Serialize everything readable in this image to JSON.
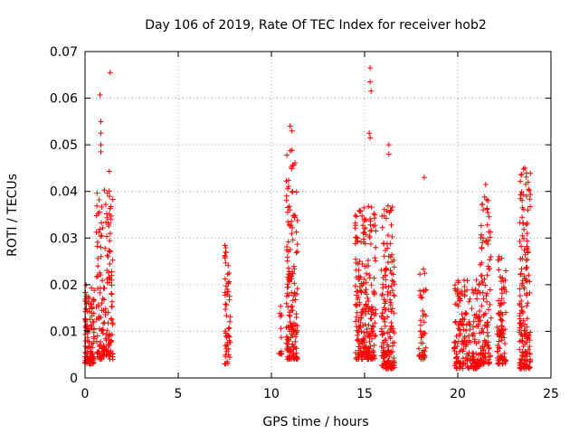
{
  "chart_data": {
    "type": "scatter",
    "title": "Day 106 of 2019, Rate Of TEC Index for receiver hob2",
    "xlabel": "GPS time / hours",
    "ylabel": "ROTI / TECUs",
    "xlim": [
      0,
      25
    ],
    "ylim": [
      0,
      0.07
    ],
    "xticks": [
      0,
      5,
      10,
      15,
      20,
      25
    ],
    "yticks": [
      0,
      0.01,
      0.02,
      0.03,
      0.04,
      0.05,
      0.06,
      0.07
    ],
    "xtick_labels": [
      "0",
      "5",
      "10",
      "15",
      "20",
      "25"
    ],
    "ytick_labels": [
      "0",
      "0.01",
      "0.02",
      "0.03",
      "0.04",
      "0.05",
      "0.06",
      "0.07"
    ],
    "grid": true,
    "marker": "+",
    "color": "#ff0000",
    "clusters": [
      {
        "x0": 0.0,
        "x1": 0.5,
        "ymin": 0.003,
        "ymax": 0.02,
        "n": 110
      },
      {
        "x0": 0.6,
        "x1": 1.5,
        "ymin": 0.004,
        "ymax": 0.041,
        "n": 170
      },
      {
        "x0": 7.5,
        "x1": 7.8,
        "ymin": 0.003,
        "ymax": 0.03,
        "n": 55
      },
      {
        "x0": 10.4,
        "x1": 10.6,
        "ymin": 0.005,
        "ymax": 0.018,
        "n": 12
      },
      {
        "x0": 10.8,
        "x1": 11.4,
        "ymin": 0.004,
        "ymax": 0.049,
        "n": 160
      },
      {
        "x0": 14.5,
        "x1": 15.6,
        "ymin": 0.004,
        "ymax": 0.037,
        "n": 240
      },
      {
        "x0": 15.9,
        "x1": 16.6,
        "ymin": 0.002,
        "ymax": 0.037,
        "n": 170
      },
      {
        "x0": 17.9,
        "x1": 18.3,
        "ymin": 0.004,
        "ymax": 0.024,
        "n": 45
      },
      {
        "x0": 19.8,
        "x1": 21.2,
        "ymin": 0.002,
        "ymax": 0.021,
        "n": 190
      },
      {
        "x0": 21.2,
        "x1": 21.8,
        "ymin": 0.003,
        "ymax": 0.04,
        "n": 110
      },
      {
        "x0": 22.1,
        "x1": 22.6,
        "ymin": 0.003,
        "ymax": 0.027,
        "n": 90
      },
      {
        "x0": 23.3,
        "x1": 23.9,
        "ymin": 0.002,
        "ymax": 0.045,
        "n": 170
      }
    ],
    "outliers": [
      {
        "x": 1.35,
        "y": 0.0655
      },
      {
        "x": 0.8,
        "y": 0.0607
      },
      {
        "x": 0.85,
        "y": 0.055
      },
      {
        "x": 0.85,
        "y": 0.0525
      },
      {
        "x": 0.85,
        "y": 0.05
      },
      {
        "x": 0.85,
        "y": 0.0485
      },
      {
        "x": 1.3,
        "y": 0.0443
      },
      {
        "x": 11.0,
        "y": 0.054
      },
      {
        "x": 11.1,
        "y": 0.053
      },
      {
        "x": 15.3,
        "y": 0.0665
      },
      {
        "x": 15.3,
        "y": 0.0635
      },
      {
        "x": 15.35,
        "y": 0.0615
      },
      {
        "x": 15.25,
        "y": 0.0525
      },
      {
        "x": 15.3,
        "y": 0.0515
      },
      {
        "x": 16.3,
        "y": 0.05
      },
      {
        "x": 16.3,
        "y": 0.048
      },
      {
        "x": 18.2,
        "y": 0.043
      },
      {
        "x": 23.6,
        "y": 0.045
      },
      {
        "x": 21.5,
        "y": 0.0415
      }
    ]
  }
}
